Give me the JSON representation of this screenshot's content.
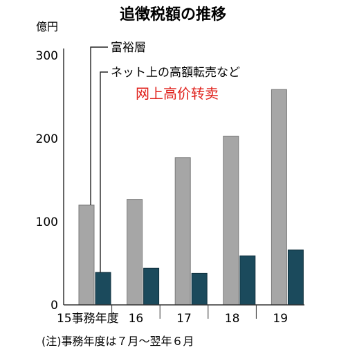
{
  "chart_data": {
    "type": "bar",
    "title": "追徴税額の推移",
    "ylabel": "億円",
    "ylim": [
      0,
      300
    ],
    "yticks": [
      0,
      100,
      200,
      300
    ],
    "categories": [
      "15事務年度",
      "16",
      "17",
      "18",
      "19"
    ],
    "series": [
      {
        "name": "富裕層",
        "color": "#a6a6a6",
        "values": [
          120,
          127,
          177,
          203,
          259
        ]
      },
      {
        "name": "ネット上の高額転売など",
        "color": "#1b4a5c",
        "values": [
          39,
          44,
          38,
          59,
          66
        ]
      }
    ],
    "annotation": "网上高价转卖",
    "note": "(注)事務年度は７月～翌年６月",
    "colors": {
      "axis": "#333333",
      "annotation": "#e0201b"
    }
  }
}
